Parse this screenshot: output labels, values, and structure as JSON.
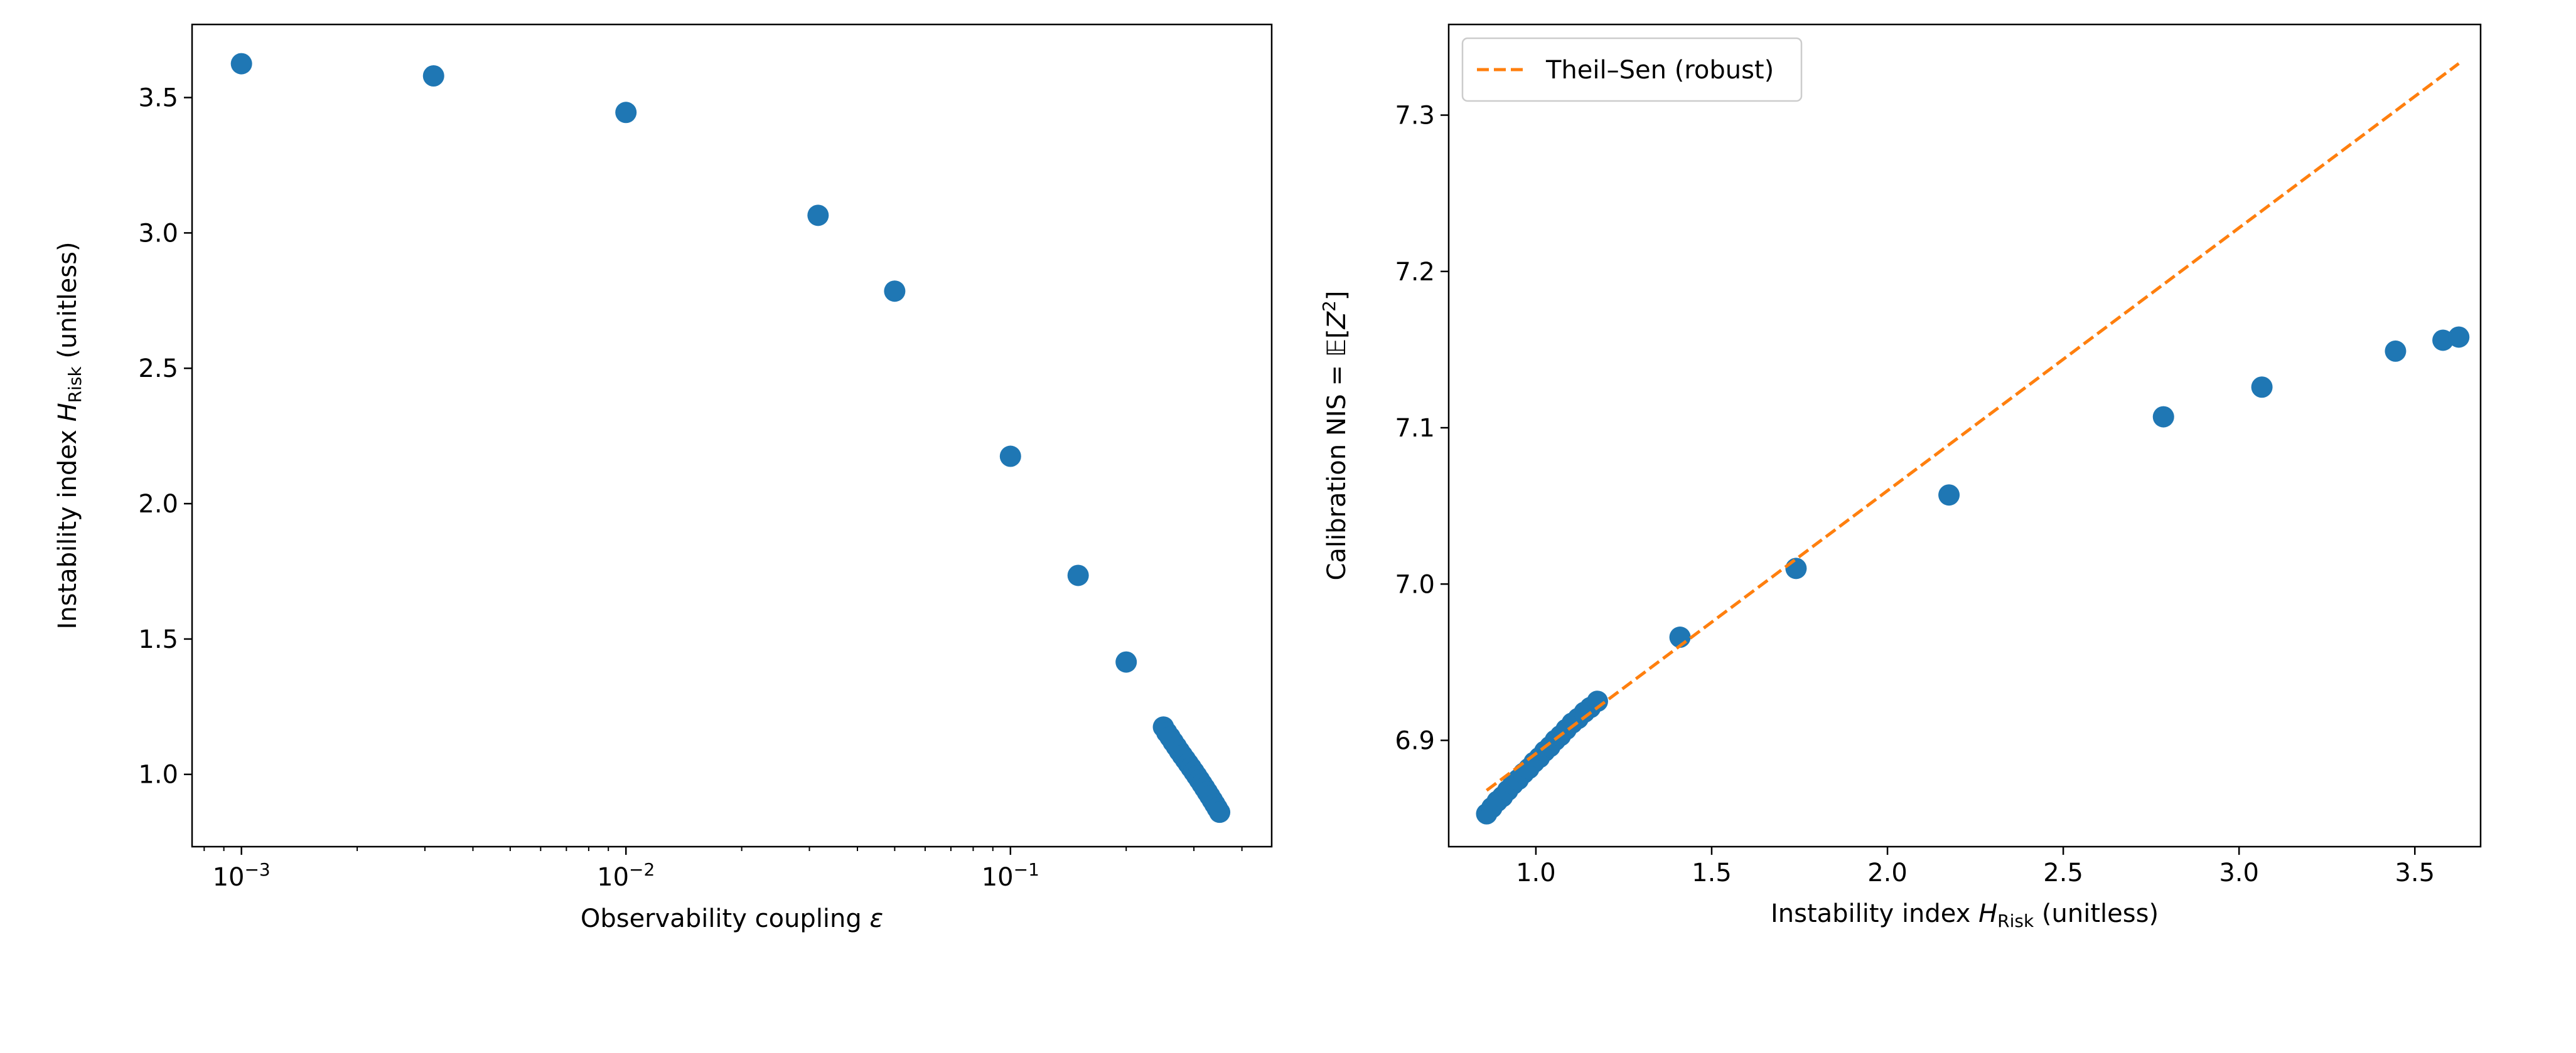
{
  "chart_data": [
    {
      "type": "scatter",
      "xlabel": "Observability coupling  ε",
      "ylabel": "Instability index  H_Risk (unitless)",
      "ylabel_parts": {
        "pre": "Instability index  ",
        "sym": "H",
        "sub": "Risk",
        "post": " (unitless)"
      },
      "xscale": "log",
      "xlim": [
        0.000744,
        0.478
      ],
      "ylim": [
        0.733,
        3.77
      ],
      "xticks": [
        {
          "v": 0.001,
          "base": "10",
          "exp": "−3"
        },
        {
          "v": 0.01,
          "base": "10",
          "exp": "−2"
        },
        {
          "v": 0.1,
          "base": "10",
          "exp": "−1"
        }
      ],
      "yticks": [
        "1.0",
        "1.5",
        "2.0",
        "2.5",
        "3.0",
        "3.5"
      ],
      "color": "#1f77b4",
      "points": [
        [
          0.001,
          3.625
        ],
        [
          0.00316,
          3.58
        ],
        [
          0.01,
          3.445
        ],
        [
          0.0316,
          3.065
        ],
        [
          0.05,
          2.785
        ],
        [
          0.1,
          2.175
        ],
        [
          0.15,
          1.735
        ],
        [
          0.2,
          1.415
        ],
        [
          0.25,
          1.175
        ],
        [
          0.255,
          1.155
        ],
        [
          0.26,
          1.138
        ],
        [
          0.265,
          1.12
        ],
        [
          0.27,
          1.103
        ],
        [
          0.275,
          1.086
        ],
        [
          0.28,
          1.07
        ],
        [
          0.285,
          1.055
        ],
        [
          0.29,
          1.04
        ],
        [
          0.295,
          1.025
        ],
        [
          0.3,
          1.01
        ],
        [
          0.305,
          0.995
        ],
        [
          0.31,
          0.98
        ],
        [
          0.315,
          0.965
        ],
        [
          0.32,
          0.95
        ],
        [
          0.325,
          0.935
        ],
        [
          0.33,
          0.92
        ],
        [
          0.335,
          0.905
        ],
        [
          0.34,
          0.89
        ],
        [
          0.345,
          0.875
        ],
        [
          0.35,
          0.86
        ]
      ]
    },
    {
      "type": "scatter",
      "xlabel": "Instability index  H_Risk (unitless)",
      "xlabel_parts": {
        "pre": "Instability index  ",
        "sym": "H",
        "sub": "Risk",
        "post": " (unitless)"
      },
      "ylabel": "Calibration  NIS = 𝔼[Z²]",
      "ylabel_parts": {
        "pre": "Calibration  NIS = 𝔼[",
        "sym": "Z",
        "sup": "2",
        "post": "]"
      },
      "xlim": [
        0.752,
        3.687
      ],
      "ylim": [
        6.832,
        7.358
      ],
      "xticks": [
        "1.0",
        "1.5",
        "2.0",
        "2.5",
        "3.0",
        "3.5"
      ],
      "yticks": [
        "6.9",
        "7.0",
        "7.1",
        "7.2",
        "7.3"
      ],
      "color": "#1f77b4",
      "points": [
        [
          1.41,
          6.966
        ],
        [
          1.74,
          7.01
        ],
        [
          2.175,
          7.057
        ],
        [
          2.785,
          7.107
        ],
        [
          3.065,
          7.126
        ],
        [
          3.445,
          7.149
        ],
        [
          3.58,
          7.156
        ],
        [
          3.625,
          7.158
        ],
        [
          0.86,
          6.853
        ],
        [
          0.875,
          6.857
        ],
        [
          0.89,
          6.861
        ],
        [
          0.905,
          6.864
        ],
        [
          0.92,
          6.868
        ],
        [
          0.935,
          6.872
        ],
        [
          0.95,
          6.875
        ],
        [
          0.965,
          6.879
        ],
        [
          0.98,
          6.882
        ],
        [
          0.995,
          6.886
        ],
        [
          1.01,
          6.889
        ],
        [
          1.025,
          6.893
        ],
        [
          1.04,
          6.896
        ],
        [
          1.055,
          6.9
        ],
        [
          1.07,
          6.903
        ],
        [
          1.086,
          6.907
        ],
        [
          1.103,
          6.911
        ],
        [
          1.12,
          6.914
        ],
        [
          1.138,
          6.918
        ],
        [
          1.155,
          6.921
        ],
        [
          1.175,
          6.925
        ]
      ],
      "fit_line": {
        "label": "Theil–Sen (robust)",
        "color": "#ff7f0e",
        "style": "dashed",
        "x": [
          0.86,
          3.625
        ],
        "y": [
          6.868,
          7.333
        ]
      },
      "legend": {
        "placement": "top-left",
        "entries": [
          "Theil–Sen (robust)"
        ]
      }
    }
  ]
}
